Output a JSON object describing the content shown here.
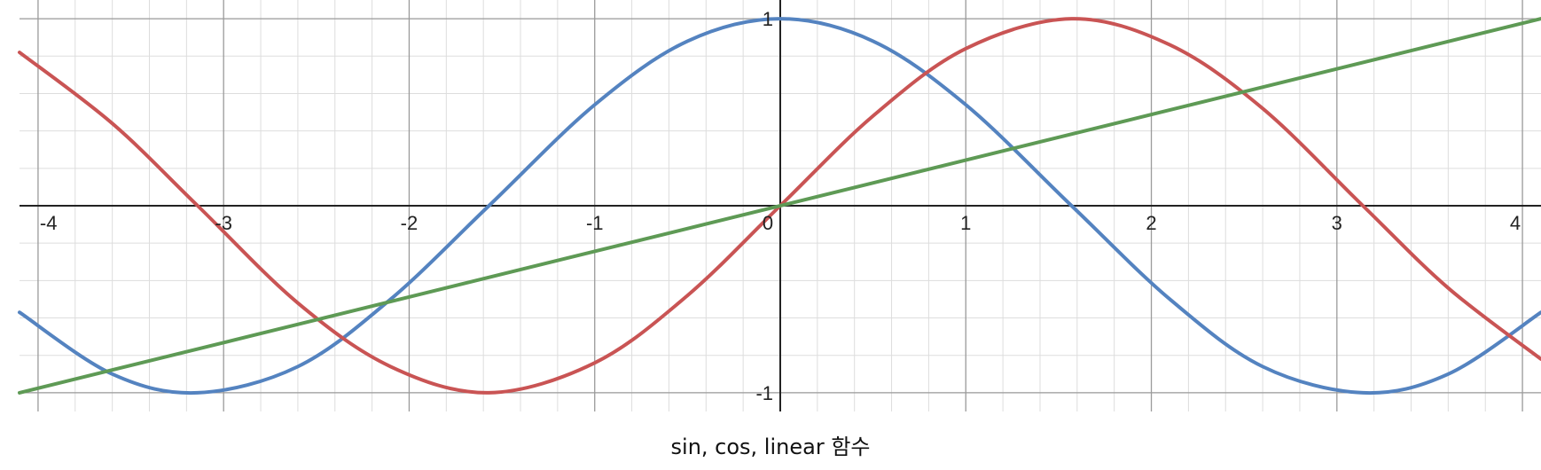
{
  "caption": "sin, cos, linear 함수",
  "chart_data": {
    "type": "line",
    "title": "",
    "xlabel": "",
    "ylabel": "",
    "xlim": [
      -4.1,
      4.1
    ],
    "ylim": [
      -1.1,
      1.1
    ],
    "grid": true,
    "x_major_ticks": [
      -4,
      -3,
      -2,
      -1,
      0,
      1,
      2,
      3,
      4
    ],
    "x_tick_labels": [
      "-4",
      "-3",
      "-2",
      "-1",
      "0",
      "1",
      "2",
      "3",
      "4"
    ],
    "y_major_ticks": [
      -1,
      1
    ],
    "y_tick_labels": [
      "-1",
      "1"
    ],
    "colors": {
      "axis": "#222222",
      "major_grid": "#9a9a9a",
      "minor_grid": "#dddddd",
      "sin": "#c95454",
      "cos": "#5483c0",
      "linear": "#5e9a55"
    },
    "series": [
      {
        "key": "cos",
        "color": "#5483c0",
        "x": [
          -4.1,
          -3.6,
          -3.14,
          -2.6,
          -2.1,
          -1.57,
          -1.0,
          -0.5,
          0.0,
          0.5,
          1.0,
          1.57,
          2.1,
          2.6,
          3.14,
          3.6,
          4.1
        ],
        "y": [
          -0.57,
          -0.9,
          -1.0,
          -0.86,
          -0.5,
          0.0,
          0.54,
          0.88,
          1.0,
          0.88,
          0.54,
          0.0,
          -0.5,
          -0.86,
          -1.0,
          -0.9,
          -0.57
        ]
      },
      {
        "key": "sin",
        "color": "#c95454",
        "x": [
          -4.1,
          -3.6,
          -3.14,
          -2.6,
          -2.1,
          -1.57,
          -1.0,
          -0.5,
          0.0,
          0.5,
          1.0,
          1.57,
          2.1,
          2.6,
          3.14,
          3.6,
          4.1
        ],
        "y": [
          0.82,
          0.44,
          0.0,
          -0.52,
          -0.86,
          -1.0,
          -0.84,
          -0.48,
          0.0,
          0.48,
          0.84,
          1.0,
          0.86,
          0.52,
          0.0,
          -0.44,
          -0.82
        ]
      },
      {
        "key": "linear",
        "color": "#5e9a55",
        "x": [
          -4.1,
          4.1
        ],
        "y": [
          -1.0,
          1.0
        ]
      }
    ]
  }
}
